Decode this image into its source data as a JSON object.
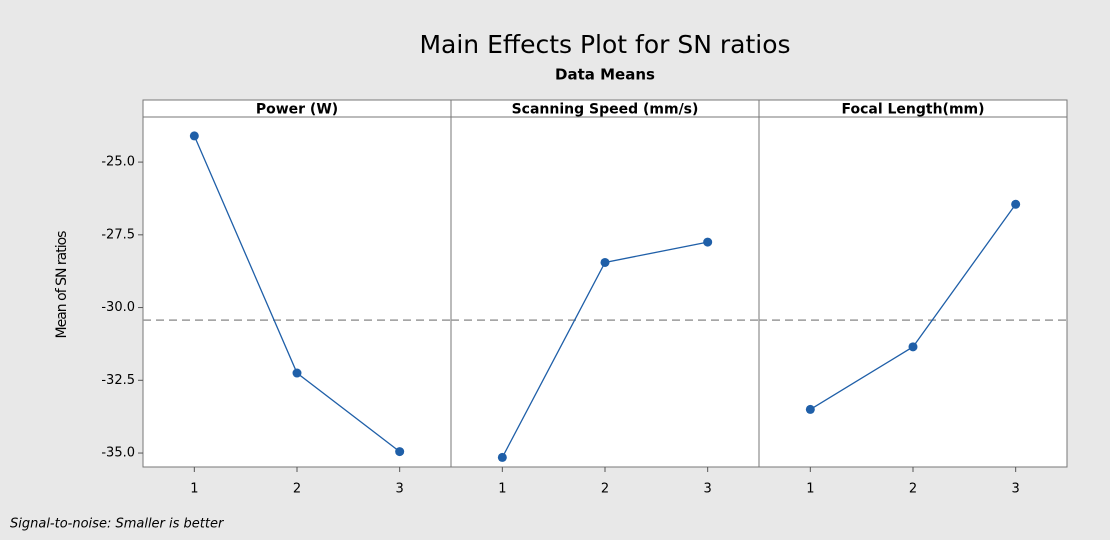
{
  "chart_data": {
    "type": "line",
    "title": "Main Effects Plot for SN ratios",
    "subtitle": "Data Means",
    "ylabel": "Mean of SN ratios",
    "footnote": "Signal-to-noise: Smaller is better",
    "color": "#1f5fa8",
    "ylim": [
      -35.48,
      -23.45
    ],
    "yticks": [
      {
        "value": -25,
        "label": "-25.0"
      },
      {
        "value": -27.5,
        "label": "-27.5"
      },
      {
        "value": -30,
        "label": "-30.0"
      },
      {
        "value": -32.5,
        "label": "-32.5"
      },
      {
        "value": -35,
        "label": "-35.0"
      }
    ],
    "reference_line": -30.43,
    "panels": [
      {
        "title": "Power (W)",
        "categories": [
          "1",
          "2",
          "3"
        ],
        "values": [
          -24.1,
          -32.25,
          -34.95
        ]
      },
      {
        "title": "Scanning Speed (mm/s)",
        "categories": [
          "1",
          "2",
          "3"
        ],
        "values": [
          -35.15,
          -28.45,
          -27.75
        ]
      },
      {
        "title": "Focal Length(mm)",
        "categories": [
          "1",
          "2",
          "3"
        ],
        "values": [
          -33.5,
          -31.35,
          -26.45
        ]
      }
    ]
  }
}
